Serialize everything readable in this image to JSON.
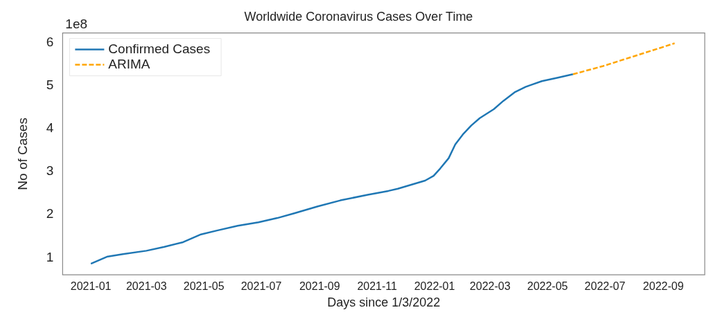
{
  "chart_data": {
    "type": "line",
    "title": "Worldwide Coronavirus Cases Over Time",
    "xlabel": "Days since 1/3/2022",
    "ylabel": "No of Cases",
    "annotations": [
      "1e8"
    ],
    "xlim": [
      "2020-12-02",
      "2022-10-15"
    ],
    "xticks": [
      {
        "value": "2021-01-01",
        "label": "2021-01"
      },
      {
        "value": "2021-03-01",
        "label": "2021-03"
      },
      {
        "value": "2021-05-01",
        "label": "2021-05"
      },
      {
        "value": "2021-07-01",
        "label": "2021-07"
      },
      {
        "value": "2021-09-01",
        "label": "2021-09"
      },
      {
        "value": "2021-11-01",
        "label": "2021-11"
      },
      {
        "value": "2022-01-01",
        "label": "2022-01"
      },
      {
        "value": "2022-03-01",
        "label": "2022-03"
      },
      {
        "value": "2022-05-01",
        "label": "2022-05"
      },
      {
        "value": "2022-07-01",
        "label": "2022-07"
      },
      {
        "value": "2022-09-01",
        "label": "2022-09"
      }
    ],
    "ylim": [
      0.6,
      6.22
    ],
    "yticks": [
      1,
      2,
      3,
      4,
      5,
      6
    ],
    "grid": false,
    "legend": "top left",
    "series": [
      {
        "name": "Confirmed Cases",
        "color": "#1f77b4",
        "line_style": "solid",
        "x": [
          "2021-01-01",
          "2021-01-18",
          "2021-02-04",
          "2021-03-01",
          "2021-03-20",
          "2021-04-09",
          "2021-04-28",
          "2021-05-15",
          "2021-06-06",
          "2021-06-28",
          "2021-07-18",
          "2021-08-05",
          "2021-08-30",
          "2021-09-23",
          "2021-10-22",
          "2021-11-13",
          "2021-11-23",
          "2021-12-22",
          "2021-12-31",
          "2022-01-07",
          "2022-01-16",
          "2022-01-23",
          "2022-01-31",
          "2022-02-09",
          "2022-02-18",
          "2022-03-05",
          "2022-03-15",
          "2022-03-27",
          "2022-04-08",
          "2022-04-25",
          "2022-05-12",
          "2022-05-28"
        ],
        "values": [
          0.86,
          1.02,
          1.08,
          1.16,
          1.25,
          1.36,
          1.54,
          1.63,
          1.74,
          1.82,
          1.92,
          2.03,
          2.19,
          2.33,
          2.46,
          2.55,
          2.6,
          2.79,
          2.9,
          3.07,
          3.31,
          3.63,
          3.86,
          4.07,
          4.24,
          4.45,
          4.64,
          4.84,
          4.97,
          5.1,
          5.18,
          5.26
        ]
      },
      {
        "name": "ARIMA",
        "color": "#ffa500",
        "line_style": "dashed",
        "x": [
          "2022-05-28",
          "2022-06-29",
          "2022-08-01",
          "2022-08-27",
          "2022-09-13"
        ],
        "values": [
          5.26,
          5.45,
          5.68,
          5.86,
          5.98
        ]
      }
    ]
  }
}
